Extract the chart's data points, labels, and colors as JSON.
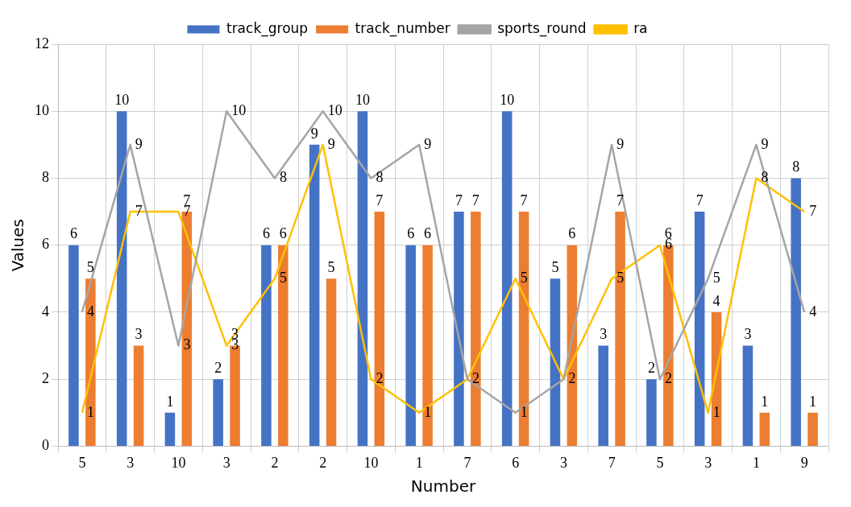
{
  "chart_data": {
    "type": "bar",
    "xlabel": "Number",
    "ylabel": "Values",
    "categories": [
      "5",
      "3",
      "10",
      "3",
      "2",
      "2",
      "10",
      "1",
      "7",
      "6",
      "3",
      "7",
      "5",
      "3",
      "1",
      "9"
    ],
    "series": [
      {
        "name": "track_group",
        "color": "#4472c4",
        "values": [
          6,
          10,
          1,
          2,
          6,
          9,
          10,
          6,
          7,
          10,
          5,
          3,
          2,
          7,
          3,
          8
        ]
      },
      {
        "name": "track_number",
        "color": "#ed7d31",
        "values": [
          5,
          3,
          7,
          3,
          6,
          5,
          7,
          6,
          7,
          7,
          6,
          7,
          6,
          4,
          1,
          1
        ]
      },
      {
        "name": "sports_round",
        "type": "line",
        "color": "#a5a5a5",
        "values": [
          4,
          9,
          3,
          10,
          8,
          10,
          8,
          9,
          2,
          1,
          2,
          9,
          2,
          5,
          9,
          4
        ]
      },
      {
        "name": "ra",
        "type": "line",
        "color": "#ffc000",
        "values": [
          1,
          7,
          7,
          3,
          5,
          9,
          2,
          1,
          2,
          5,
          2,
          5,
          6,
          1,
          8,
          7
        ],
        "value_labels": [
          "1",
          "7",
          "7",
          "3",
          "5",
          "9",
          "2",
          "1",
          null,
          "5",
          null,
          "5",
          "6",
          "1",
          "8",
          "7"
        ]
      }
    ],
    "ylim": [
      0,
      12
    ],
    "yticks": [
      0,
      2,
      4,
      6,
      8,
      10,
      12
    ],
    "grid": true,
    "legend": "top",
    "data_labels": true,
    "marker": "none"
  }
}
